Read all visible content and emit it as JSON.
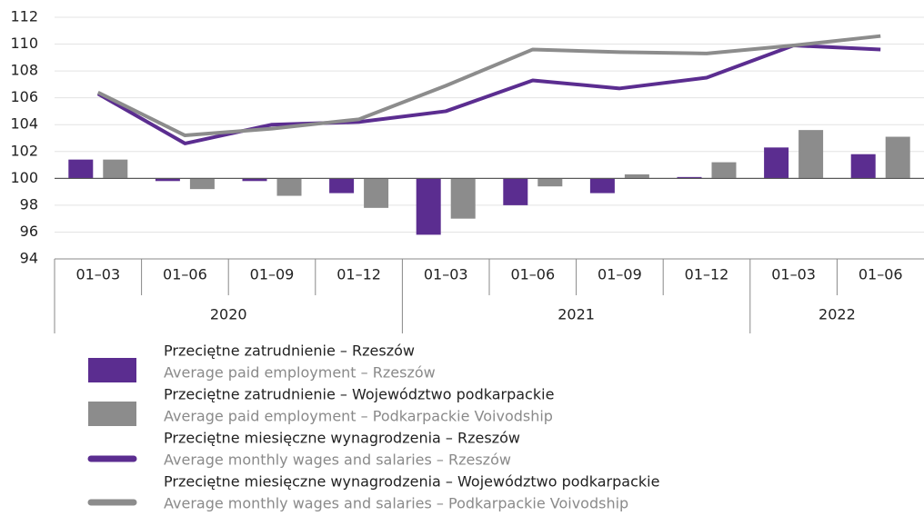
{
  "chart_data": {
    "type": "bar-line",
    "groups": [
      {
        "label": "2020",
        "categories": [
          "01–03",
          "01–06",
          "01–09",
          "01–12"
        ]
      },
      {
        "label": "2021",
        "categories": [
          "01–03",
          "01–06",
          "01–09",
          "01–12"
        ]
      },
      {
        "label": "2022",
        "categories": [
          "01–03",
          "01–06"
        ]
      }
    ],
    "series": [
      {
        "name": "Przeciętne zatrudnienie – Rzeszów",
        "name_en": "Average paid employment – Rzeszów",
        "kind": "bar",
        "color": "#5b2d90",
        "values": [
          101.4,
          99.8,
          99.8,
          98.9,
          95.8,
          98.0,
          98.9,
          100.1,
          102.3,
          101.8
        ]
      },
      {
        "name": "Przeciętne zatrudnienie – Województwo podkarpackie",
        "name_en": "Average paid employment – Podkarpackie Voivodship",
        "kind": "bar",
        "color": "#8c8c8c",
        "values": [
          101.4,
          99.2,
          98.7,
          97.8,
          97.0,
          99.4,
          100.3,
          101.2,
          103.6,
          103.1
        ]
      },
      {
        "name": "Przeciętne miesięczne wynagrodzenia  – Rzeszów",
        "name_en": "Average monthly wages and salaries – Rzeszów",
        "kind": "line",
        "color": "#5b2d90",
        "values": [
          106.3,
          102.6,
          104.0,
          104.2,
          105.0,
          107.3,
          106.7,
          107.5,
          109.9,
          109.6
        ]
      },
      {
        "name": "Przeciętne miesięczne wynagrodzenia – Województwo podkarpackie",
        "name_en": "Average monthly wages and salaries – Podkarpackie Voivodship",
        "kind": "line",
        "color": "#8c8c8c",
        "values": [
          106.4,
          103.2,
          103.7,
          104.4,
          106.9,
          109.6,
          109.4,
          109.3,
          109.9,
          110.6
        ]
      }
    ],
    "baseline": 100,
    "ylim": [
      94,
      112
    ],
    "yticks": [
      94,
      96,
      98,
      100,
      102,
      104,
      106,
      108,
      110,
      112
    ],
    "grid": true
  }
}
